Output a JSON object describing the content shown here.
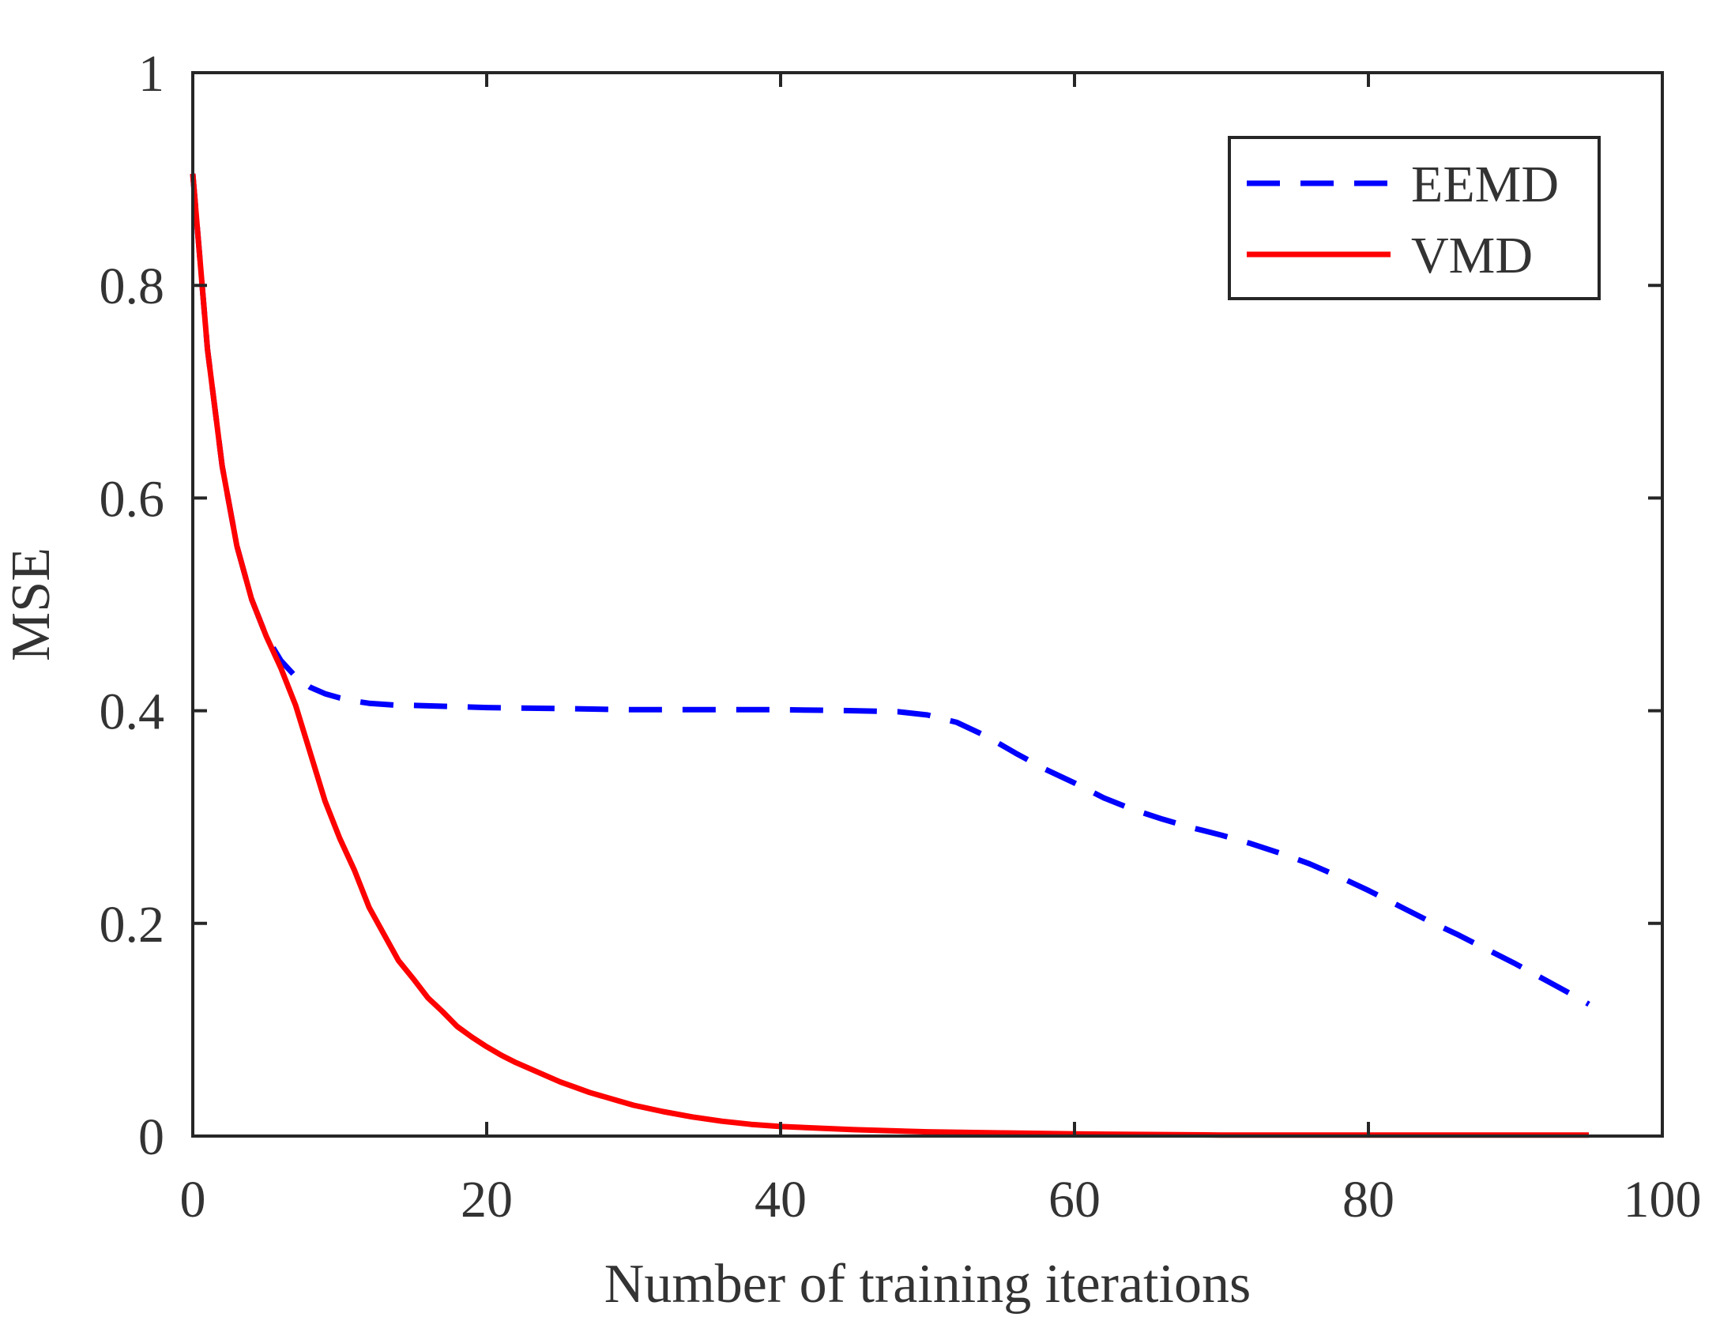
{
  "chart_data": {
    "type": "line",
    "title": "",
    "xlabel": "Number of training iterations",
    "ylabel": "MSE",
    "xlim": [
      0,
      100
    ],
    "ylim": [
      0,
      1
    ],
    "xticks": [
      0,
      20,
      40,
      60,
      80,
      100
    ],
    "yticks": [
      0,
      0.2,
      0.4,
      0.6,
      0.8,
      1
    ],
    "xtick_labels": [
      "0",
      "20",
      "40",
      "60",
      "80",
      "100"
    ],
    "ytick_labels": [
      "0",
      "0.2",
      "0.4",
      "0.6",
      "0.8",
      "1"
    ],
    "grid": false,
    "legend_position": "top-right",
    "series": [
      {
        "name": "EEMD",
        "color": "#0000ff",
        "style": "dashed",
        "x": [
          0,
          1,
          2,
          3,
          4,
          5,
          6,
          7,
          8,
          9,
          10,
          11,
          12,
          13,
          14,
          15,
          20,
          25,
          30,
          35,
          40,
          45,
          48,
          50,
          52,
          54,
          56,
          58,
          60,
          62,
          64,
          66,
          68,
          70,
          72,
          74,
          76,
          78,
          80,
          82,
          84,
          86,
          88,
          90,
          92,
          94,
          95
        ],
        "y": [
          0.905,
          0.74,
          0.63,
          0.555,
          0.505,
          0.47,
          0.447,
          0.432,
          0.422,
          0.416,
          0.412,
          0.409,
          0.407,
          0.406,
          0.405,
          0.405,
          0.403,
          0.402,
          0.401,
          0.401,
          0.401,
          0.4,
          0.399,
          0.396,
          0.389,
          0.376,
          0.36,
          0.345,
          0.332,
          0.318,
          0.307,
          0.298,
          0.29,
          0.283,
          0.275,
          0.266,
          0.256,
          0.244,
          0.231,
          0.217,
          0.203,
          0.19,
          0.176,
          0.162,
          0.147,
          0.132,
          0.124
        ]
      },
      {
        "name": "VMD",
        "color": "#ff0000",
        "style": "solid",
        "x": [
          0,
          1,
          2,
          3,
          4,
          5,
          6,
          7,
          8,
          9,
          10,
          11,
          12,
          13,
          14,
          15,
          16,
          17,
          18,
          19,
          20,
          21,
          22,
          23,
          24,
          25,
          26,
          27,
          28,
          29,
          30,
          32,
          34,
          36,
          38,
          40,
          45,
          50,
          55,
          60,
          70,
          80,
          90,
          95
        ],
        "y": [
          0.905,
          0.74,
          0.63,
          0.555,
          0.505,
          0.47,
          0.44,
          0.405,
          0.36,
          0.315,
          0.28,
          0.25,
          0.215,
          0.19,
          0.165,
          0.148,
          0.13,
          0.117,
          0.103,
          0.093,
          0.084,
          0.076,
          0.069,
          0.063,
          0.057,
          0.051,
          0.046,
          0.041,
          0.037,
          0.033,
          0.029,
          0.023,
          0.018,
          0.014,
          0.011,
          0.009,
          0.006,
          0.004,
          0.003,
          0.002,
          0.001,
          0.001,
          0.001,
          0.001
        ]
      }
    ]
  }
}
